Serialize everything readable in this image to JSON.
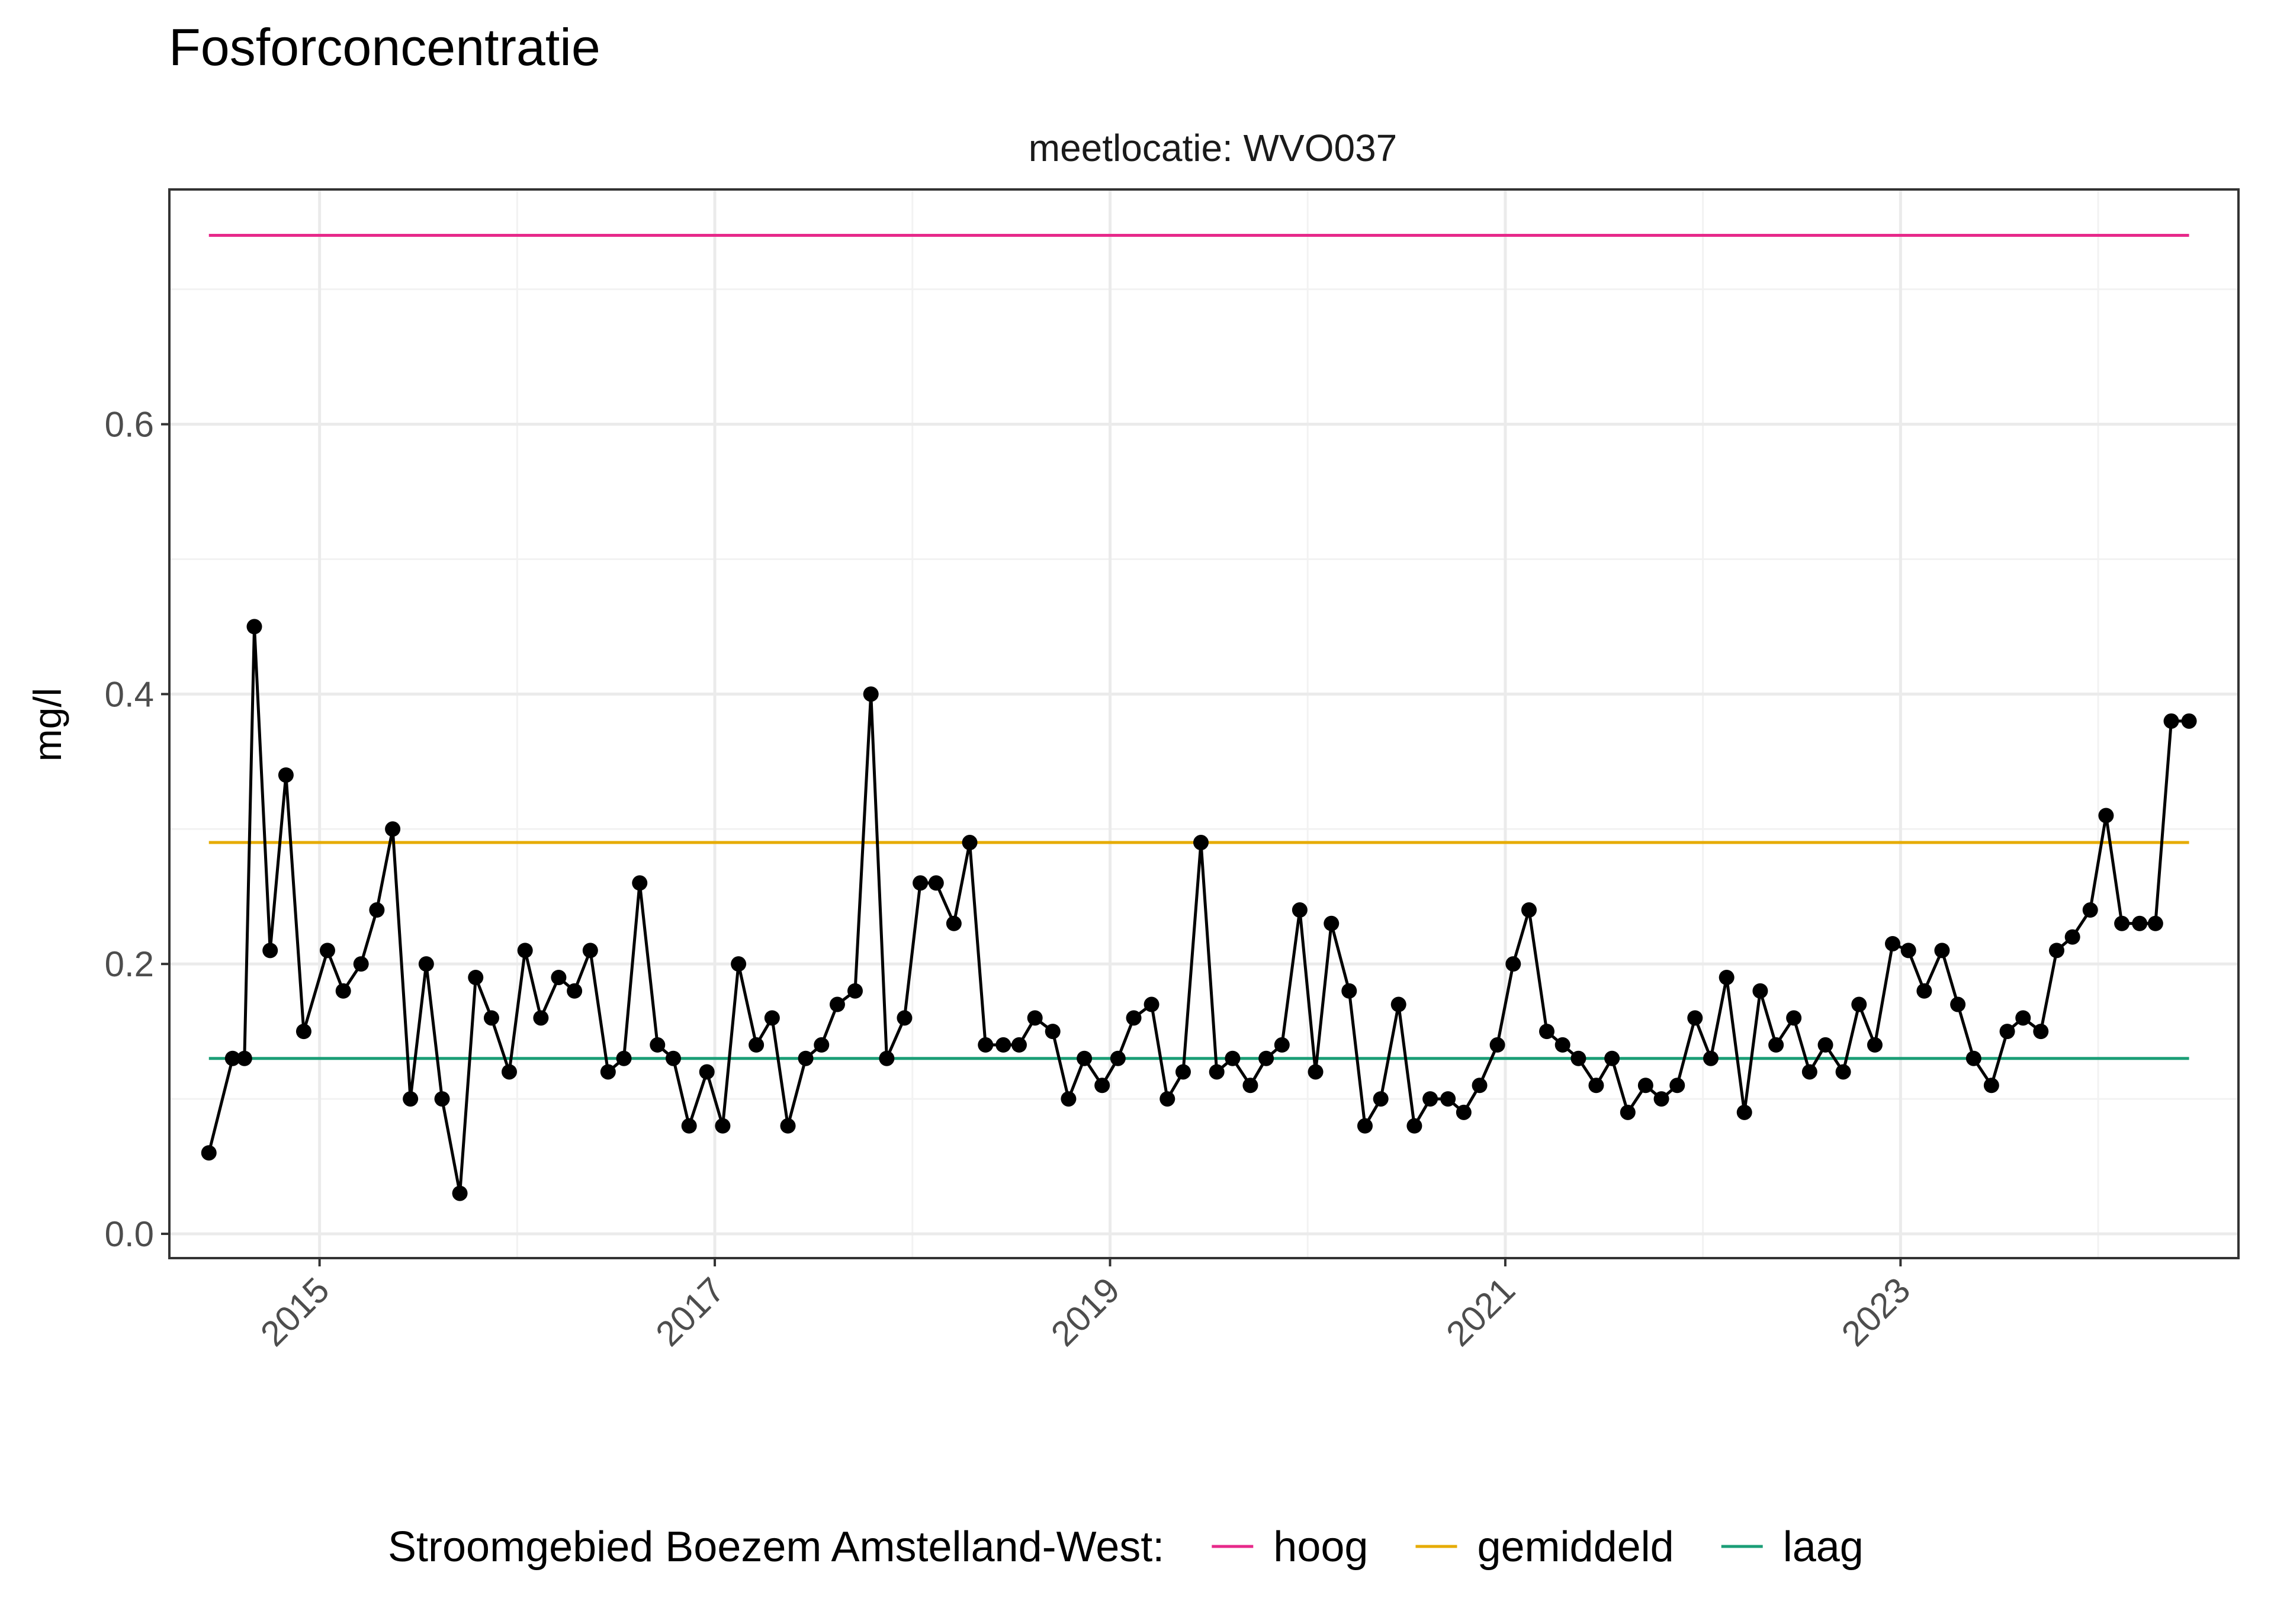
{
  "chart_data": {
    "type": "line",
    "title": "Fosforconcentratie",
    "subtitle": "meetlocatie: WVO037",
    "xlabel": "",
    "ylabel": "mg/l",
    "xlim": [
      2014.24,
      2024.71
    ],
    "ylim": [
      -0.018,
      0.774
    ],
    "x_ticks": [
      2015,
      2017,
      2019,
      2021,
      2023
    ],
    "x_tick_labels": [
      "2015",
      "2017",
      "2019",
      "2021",
      "2023"
    ],
    "y_ticks": [
      0.0,
      0.2,
      0.4,
      0.6
    ],
    "y_tick_labels": [
      "0.0",
      "0.2",
      "0.4",
      "0.6"
    ],
    "grid": true,
    "series": [
      {
        "color": "#000000",
        "x": [
          2014.44,
          2014.56,
          2014.62,
          2014.67,
          2014.75,
          2014.83,
          2014.92,
          2015.04,
          2015.12,
          2015.21,
          2015.29,
          2015.37,
          2015.46,
          2015.54,
          2015.62,
          2015.71,
          2015.79,
          2015.87,
          2015.96,
          2016.04,
          2016.12,
          2016.21,
          2016.29,
          2016.37,
          2016.46,
          2016.54,
          2016.62,
          2016.71,
          2016.79,
          2016.87,
          2016.96,
          2017.04,
          2017.12,
          2017.21,
          2017.29,
          2017.37,
          2017.46,
          2017.54,
          2017.62,
          2017.71,
          2017.79,
          2017.87,
          2017.96,
          2018.04,
          2018.12,
          2018.21,
          2018.29,
          2018.37,
          2018.46,
          2018.54,
          2018.62,
          2018.71,
          2018.79,
          2018.87,
          2018.96,
          2019.04,
          2019.12,
          2019.21,
          2019.29,
          2019.37,
          2019.46,
          2019.54,
          2019.62,
          2019.71,
          2019.79,
          2019.87,
          2019.96,
          2020.04,
          2020.12,
          2020.21,
          2020.29,
          2020.37,
          2020.46,
          2020.54,
          2020.62,
          2020.71,
          2020.79,
          2020.87,
          2020.96,
          2021.04,
          2021.12,
          2021.21,
          2021.29,
          2021.37,
          2021.46,
          2021.54,
          2021.62,
          2021.71,
          2021.79,
          2021.87,
          2021.96,
          2022.04,
          2022.12,
          2022.21,
          2022.29,
          2022.37,
          2022.46,
          2022.54,
          2022.62,
          2022.71,
          2022.79,
          2022.87,
          2022.96,
          2023.04,
          2023.12,
          2023.21,
          2023.29,
          2023.37,
          2023.46,
          2023.54,
          2023.62,
          2023.71,
          2023.79,
          2023.87,
          2023.96,
          2024.04,
          2024.12,
          2024.21,
          2024.29,
          2024.37,
          2024.46
        ],
        "values": [
          0.06,
          0.13,
          0.13,
          0.45,
          0.21,
          0.34,
          0.15,
          0.21,
          0.18,
          0.2,
          0.24,
          0.3,
          0.1,
          0.2,
          0.1,
          0.03,
          0.19,
          0.16,
          0.12,
          0.21,
          0.16,
          0.19,
          0.18,
          0.21,
          0.12,
          0.13,
          0.26,
          0.14,
          0.13,
          0.08,
          0.12,
          0.08,
          0.2,
          0.14,
          0.16,
          0.08,
          0.13,
          0.14,
          0.17,
          0.18,
          0.4,
          0.13,
          0.16,
          0.26,
          0.26,
          0.23,
          0.29,
          0.14,
          0.14,
          0.14,
          0.16,
          0.15,
          0.1,
          0.13,
          0.11,
          0.13,
          0.16,
          0.17,
          0.1,
          0.12,
          0.29,
          0.12,
          0.13,
          0.11,
          0.13,
          0.14,
          0.24,
          0.12,
          0.23,
          0.18,
          0.08,
          0.1,
          0.17,
          0.08,
          0.1,
          0.1,
          0.09,
          0.11,
          0.14,
          0.2,
          0.24,
          0.15,
          0.14,
          0.13,
          0.11,
          0.13,
          0.09,
          0.11,
          0.1,
          0.11,
          0.16,
          0.13,
          0.19,
          0.09,
          0.18,
          0.14,
          0.16,
          0.12,
          0.14,
          0.12,
          0.17,
          0.14,
          0.215,
          0.21,
          0.18,
          0.21,
          0.17,
          0.13,
          0.11,
          0.15,
          0.16,
          0.15,
          0.21,
          0.22,
          0.24,
          0.31,
          0.23,
          0.23,
          0.23,
          0.38,
          0.38
        ]
      }
    ],
    "reference_lines": [
      {
        "name": "hoog",
        "value": 0.74,
        "color": "#e7298a",
        "x": [
          2014.44,
          2024.46
        ]
      },
      {
        "name": "gemiddeld",
        "value": 0.29,
        "color": "#e6ab02",
        "x": [
          2014.44,
          2024.46
        ]
      },
      {
        "name": "laag",
        "value": 0.13,
        "color": "#1b9e77",
        "x": [
          2014.44,
          2024.46
        ]
      }
    ],
    "legend": {
      "title": "Stroomgebied Boezem Amstelland-West:",
      "position": "bottom",
      "entries": [
        {
          "label": "hoog",
          "color": "#e7298a"
        },
        {
          "label": "gemiddeld",
          "color": "#e6ab02"
        },
        {
          "label": "laag",
          "color": "#1b9e77"
        }
      ]
    }
  }
}
